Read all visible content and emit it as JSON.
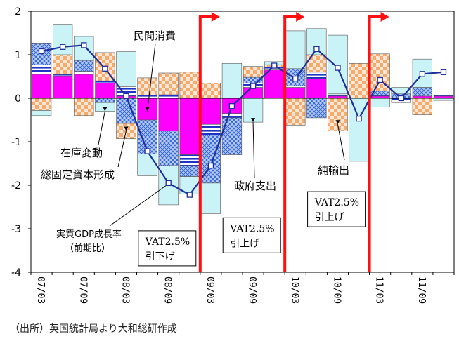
{
  "chart_data": {
    "type": "bar",
    "subtype": "stacked contribution bars with growth line",
    "ylim": [
      -4,
      2
    ],
    "yticks": [
      2,
      1,
      0,
      -1,
      -2,
      -3,
      -4
    ],
    "ytick_labels": [
      "2",
      "1",
      "0",
      "-1",
      "-2",
      "-3",
      "-4"
    ],
    "quarters": [
      "07/03",
      "07/06",
      "07/09",
      "07/12",
      "08/03",
      "08/06",
      "08/09",
      "08/12",
      "09/03",
      "09/06",
      "09/09",
      "09/12",
      "10/03",
      "10/06",
      "10/09",
      "10/12",
      "11/03",
      "11/06",
      "11/09",
      "11/12"
    ],
    "xtick_labels": [
      "07/03",
      "07/09",
      "08/03",
      "08/09",
      "09/03",
      "09/09",
      "10/03",
      "10/09",
      "11/03",
      "11/09"
    ],
    "legend": "none (inline annotations)",
    "grid": false,
    "series": [
      {
        "name": "民間消費",
        "pattern": "solid magenta",
        "values": [
          0.55,
          0.5,
          0.55,
          0.35,
          0.05,
          -0.5,
          -0.75,
          -1.3,
          -0.6,
          -0.35,
          0.25,
          0.65,
          0.25,
          0.45,
          0.05,
          0.0,
          0.05,
          0.0,
          0.05,
          0.05
        ]
      },
      {
        "name": "在庫変動",
        "pattern": "blue stripes",
        "values": [
          0.22,
          0.05,
          0.07,
          0.05,
          0.22,
          0.07,
          0.08,
          -0.25,
          -0.25,
          -0.1,
          0.1,
          0.07,
          0.03,
          0.15,
          0.05,
          0.0,
          0.02,
          -0.1,
          0.0,
          0.02
        ]
      },
      {
        "name": "総固定資本形成",
        "pattern": "blue crosshatch",
        "values": [
          0.5,
          0.0,
          0.25,
          -0.1,
          -0.58,
          -0.78,
          -0.8,
          -0.25,
          -1.1,
          -0.85,
          0.13,
          0.0,
          0.4,
          -0.45,
          0.0,
          0.0,
          0.1,
          0.1,
          0.2,
          0.0
        ]
      },
      {
        "name": "純輸出",
        "pattern": "orange checker",
        "values": [
          -0.28,
          0.45,
          -0.4,
          0.65,
          -0.35,
          0.4,
          0.5,
          0.6,
          0.35,
          0.0,
          0.25,
          0.05,
          -0.62,
          0.4,
          -0.75,
          0.8,
          0.85,
          0.0,
          -0.38,
          0.0
        ]
      },
      {
        "name": "政府支出",
        "pattern": "light cyan",
        "values": [
          -0.12,
          0.7,
          0.55,
          -0.2,
          0.8,
          -0.5,
          -0.9,
          -0.4,
          -0.7,
          0.8,
          -0.55,
          0.07,
          0.87,
          0.6,
          1.35,
          -1.45,
          -0.2,
          0.15,
          0.65,
          -0.05
        ]
      },
      {
        "name": "実質GDP成長率（前期比）",
        "type": "line",
        "values": [
          1.08,
          1.18,
          1.22,
          0.68,
          0.05,
          -1.22,
          -1.95,
          -2.22,
          -1.55,
          -0.18,
          0.28,
          0.75,
          0.45,
          1.13,
          0.7,
          -0.47,
          0.42,
          0.0,
          0.56,
          0.6
        ]
      }
    ],
    "events": [
      {
        "after_quarter": "08/12",
        "label_lines": [
          "VAT2.5%",
          "引下げ"
        ],
        "label_ymid": -3.45
      },
      {
        "after_quarter": "09/12",
        "label_lines": [
          "VAT2.5%",
          "引上げ"
        ],
        "label_ymid": -3.15
      },
      {
        "after_quarter": "10/12",
        "label_lines": [
          "VAT2.5%",
          "引上げ"
        ],
        "label_ymid": -2.55
      }
    ],
    "annotations": [
      {
        "text": "民間消費",
        "points_to_quarter": "08/06",
        "side": "above"
      },
      {
        "text": "在庫変動",
        "points_to_quarter": "07/12",
        "side": "left"
      },
      {
        "text": "総固定資本形成",
        "points_to_quarter": "08/03",
        "side": "left"
      },
      {
        "text": "実質GDP成長率",
        "text2": "（前期比）",
        "points_to_quarter": "08/09",
        "side": "below"
      },
      {
        "text": "政府支出",
        "points_to_quarter": "09/09",
        "side": "below"
      },
      {
        "text": "純輸出",
        "points_to_quarter": "10/09",
        "side": "left"
      }
    ],
    "colors": {
      "consumption": "#ff00ff",
      "inventory": "#1f33c8",
      "investment_bg": "#b7c8f3",
      "investment_fg": "#2f66d8",
      "netexports_bg": "#fde3cf",
      "netexports_fg": "#f4a868",
      "government": "#c9f3f6",
      "gdp_line": "#1f2f9a",
      "vat_line": "#ff1010"
    }
  },
  "source_note": "（出所）英国統計局より大和総研作成"
}
